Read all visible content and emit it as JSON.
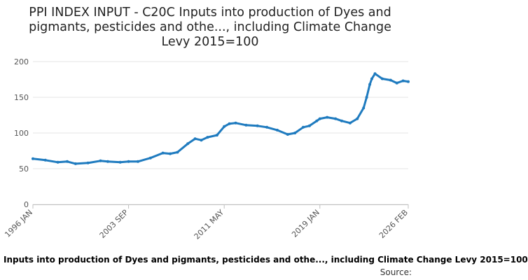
{
  "chart_data": {
    "type": "line",
    "title": "PPI INDEX INPUT - C20C Inputs into production of Dyes and pigmants, pesticides and othe..., including Climate Change Levy 2015=100",
    "title_lines": [
      "PPI INDEX INPUT - C20C Inputs into production of Dyes and",
      "pigmants, pesticides and othe..., including Climate Change",
      "Levy 2015=100"
    ],
    "xlabel": "",
    "ylabel": "",
    "ylim": [
      0,
      200
    ],
    "yticks": [
      0,
      50,
      100,
      150,
      200
    ],
    "xtick_labels": [
      "1996 JAN",
      "2003 SEP",
      "2011 MAY",
      "2019 JAN",
      "2026 FEB"
    ],
    "grid": "horizontal",
    "legend_text": "Inputs into production of Dyes and pigmants, pesticides and othe..., including Climate Change Levy 2015=100",
    "source_label": "Source:",
    "color": "#1f7bbf",
    "series": [
      {
        "x": [
          "1996-01",
          "1997-01",
          "1998-01",
          "1998-10",
          "1999-06",
          "2000-06",
          "2001-06",
          "2002-01",
          "2003-01",
          "2003-09",
          "2004-06",
          "2005-06",
          "2006-06",
          "2007-01",
          "2007-08",
          "2008-06",
          "2009-01",
          "2009-07",
          "2010-01",
          "2010-10",
          "2011-05",
          "2011-10",
          "2012-04",
          "2013-02",
          "2014-01",
          "2014-10",
          "2015-08",
          "2016-06",
          "2017-01",
          "2017-09",
          "2018-03",
          "2018-10",
          "2019-01",
          "2019-08",
          "2020-04",
          "2020-10",
          "2021-06",
          "2022-01",
          "2022-07",
          "2022-10",
          "2023-01",
          "2023-03",
          "2023-06",
          "2024-01",
          "2024-09",
          "2025-03",
          "2025-09",
          "2026-02"
        ],
        "y": [
          64,
          62,
          59,
          60,
          57,
          58,
          61,
          60,
          59,
          60,
          60,
          65,
          72,
          71,
          73,
          85,
          92,
          90,
          94,
          97,
          109,
          113,
          114,
          111,
          110,
          108,
          104,
          98,
          100,
          108,
          110,
          117,
          120,
          122,
          120,
          117,
          114,
          120,
          135,
          150,
          168,
          176,
          183,
          176,
          174,
          170,
          173,
          172
        ]
      }
    ]
  }
}
